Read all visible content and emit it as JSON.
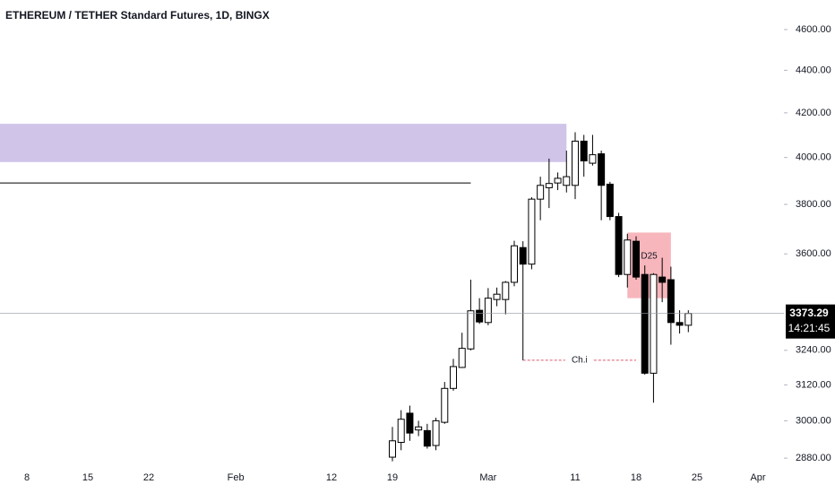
{
  "chart_data": {
    "type": "candlestick",
    "title": "ETHEREUM / TETHER Standard Futures, 1D, BINGX",
    "categories": [
      "8",
      null,
      null,
      null,
      null,
      null,
      null,
      "15",
      null,
      null,
      null,
      null,
      null,
      null,
      "22",
      null,
      null,
      null,
      null,
      null,
      null,
      null,
      null,
      null,
      "Feb",
      null,
      null,
      null,
      null,
      null,
      null,
      null,
      null,
      null,
      null,
      "12",
      null,
      null,
      null,
      null,
      null,
      null,
      "19",
      null,
      null,
      null,
      null,
      null,
      null,
      null,
      null,
      null,
      null,
      "Mar",
      null,
      null,
      null,
      null,
      null,
      null,
      null,
      null,
      null,
      "11",
      null,
      null,
      null,
      null,
      null,
      null,
      "18",
      null,
      null,
      null,
      null,
      null,
      null,
      "25",
      null,
      null,
      null,
      null,
      null,
      null,
      "Apr"
    ],
    "open": [
      null,
      null,
      null,
      null,
      null,
      null,
      null,
      null,
      null,
      null,
      null,
      null,
      null,
      null,
      null,
      null,
      null,
      null,
      null,
      null,
      null,
      null,
      null,
      null,
      null,
      null,
      null,
      null,
      null,
      null,
      null,
      null,
      null,
      null,
      null,
      null,
      null,
      null,
      null,
      null,
      null,
      null,
      2883,
      2930,
      3025,
      2970,
      2968,
      2920,
      2995,
      3108,
      3180,
      3245,
      3385,
      3340,
      3425,
      3425,
      3490,
      3625,
      3560,
      3822,
      3870,
      3890,
      3880,
      3880,
      4072,
      3975,
      4016,
      3885,
      3750,
      3520,
      3650,
      3520,
      3160,
      3510,
      3500,
      3340,
      3330,
      null,
      null,
      null,
      null,
      null,
      null,
      null,
      null
    ],
    "high": [
      null,
      null,
      null,
      null,
      null,
      null,
      null,
      null,
      null,
      null,
      null,
      null,
      null,
      null,
      null,
      null,
      null,
      null,
      null,
      null,
      null,
      null,
      null,
      null,
      null,
      null,
      null,
      null,
      null,
      null,
      null,
      null,
      null,
      null,
      null,
      null,
      null,
      null,
      null,
      null,
      null,
      null,
      2980,
      3035,
      3050,
      3000,
      2990,
      3010,
      3130,
      3210,
      3303,
      3500,
      3430,
      3468,
      3470,
      3495,
      3652,
      3650,
      3830,
      3917,
      3995,
      3935,
      4030,
      4112,
      4100,
      4100,
      4030,
      3895,
      3765,
      3680,
      3670,
      3555,
      3525,
      3585,
      3550,
      3385,
      3385,
      null,
      null,
      null,
      null,
      null,
      null,
      null,
      null
    ],
    "low": [
      null,
      null,
      null,
      null,
      null,
      null,
      null,
      null,
      null,
      null,
      null,
      null,
      null,
      null,
      null,
      null,
      null,
      null,
      null,
      null,
      null,
      null,
      null,
      null,
      null,
      null,
      null,
      null,
      null,
      null,
      null,
      null,
      null,
      null,
      null,
      null,
      null,
      null,
      null,
      null,
      null,
      null,
      2870,
      2905,
      2935,
      2950,
      2910,
      2905,
      2990,
      3100,
      3178,
      3240,
      3335,
      3330,
      3400,
      3370,
      3475,
      3205,
      3540,
      3735,
      3785,
      3860,
      3850,
      3822,
      3917,
      3965,
      3735,
      3735,
      3510,
      3470,
      3500,
      3155,
      3060,
      3415,
      3260,
      3300,
      3305,
      null,
      null,
      null,
      null,
      null,
      null,
      null,
      null
    ],
    "close": [
      null,
      null,
      null,
      null,
      null,
      null,
      null,
      null,
      null,
      null,
      null,
      null,
      null,
      null,
      null,
      null,
      null,
      null,
      null,
      null,
      null,
      null,
      null,
      null,
      null,
      null,
      null,
      null,
      null,
      null,
      null,
      null,
      null,
      null,
      null,
      null,
      null,
      null,
      null,
      null,
      null,
      null,
      2935,
      3005,
      2960,
      2980,
      2918,
      3000,
      3108,
      3183,
      3247,
      3383,
      3342,
      3430,
      3445,
      3490,
      3632,
      3560,
      3822,
      3880,
      3888,
      3910,
      3917,
      4072,
      3985,
      4012,
      3880,
      3750,
      3520,
      3655,
      3510,
      3160,
      3520,
      3490,
      3340,
      3330,
      3373.29,
      null,
      null,
      null,
      null,
      null,
      null,
      null,
      null
    ],
    "up_color": "#ffffff",
    "down_color": "#000000",
    "wick_color": "#000000",
    "countdown": "14:21:45",
    "log_scale": true,
    "ylim": [
      2855,
      4751
    ],
    "yticks": [
      {
        "value": 2880,
        "label": "2880.00"
      },
      {
        "value": 3000,
        "label": "3000.00"
      },
      {
        "value": 3120,
        "label": "3120.00"
      },
      {
        "value": 3240,
        "label": "3240.00"
      },
      {
        "value": 3600,
        "label": "3600.00"
      },
      {
        "value": 3800,
        "label": "3800.00"
      },
      {
        "value": 4000,
        "label": "4000.00"
      },
      {
        "value": 4200,
        "label": "4200.00"
      },
      {
        "value": 4400,
        "label": "4400.00"
      },
      {
        "value": 4600,
        "label": "4600.00"
      }
    ],
    "zones": [
      {
        "from": 0,
        "to": 62,
        "top": 4150,
        "bottom": 3980,
        "color": "#d1c4e9"
      },
      {
        "label": "D25",
        "from": 69,
        "to": 74,
        "top": 3685,
        "bottom": 3430,
        "color": "#f7b6bc"
      }
    ],
    "lines": [
      {
        "from": 0,
        "to": 51,
        "value": 3890,
        "color": "#000000"
      },
      {
        "label": "Ch.i",
        "from": 57,
        "to": 70,
        "value": 3205,
        "color": "#e05a6e"
      }
    ]
  }
}
